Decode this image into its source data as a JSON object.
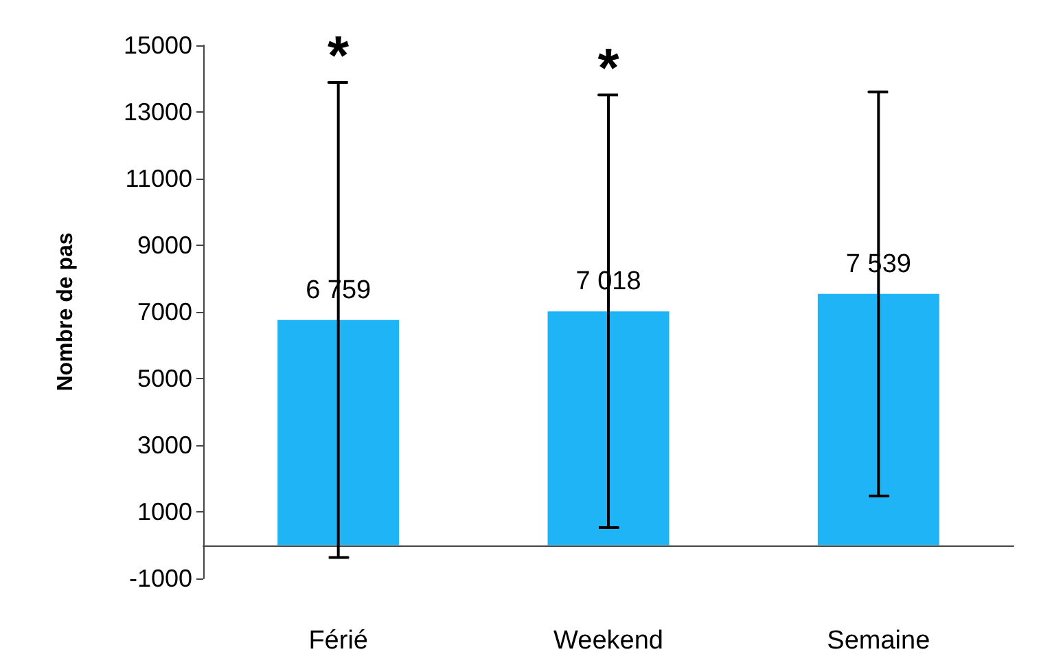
{
  "chart_data": {
    "type": "bar",
    "ylabel": "Nombre de pas",
    "categories": [
      "Férié",
      "Weekend",
      "Semaine"
    ],
    "values": [
      6759,
      7018,
      7539
    ],
    "value_labels": [
      "6 759",
      "7 018",
      "7 539"
    ],
    "errors": [
      7130,
      6490,
      6065
    ],
    "color": "#1eb4f5",
    "ylim": [
      -1000,
      15000
    ],
    "yticks": [
      -1000,
      1000,
      3000,
      5000,
      7000,
      9000,
      11000,
      13000,
      15000
    ],
    "annotations": [
      "*",
      "*"
    ]
  }
}
